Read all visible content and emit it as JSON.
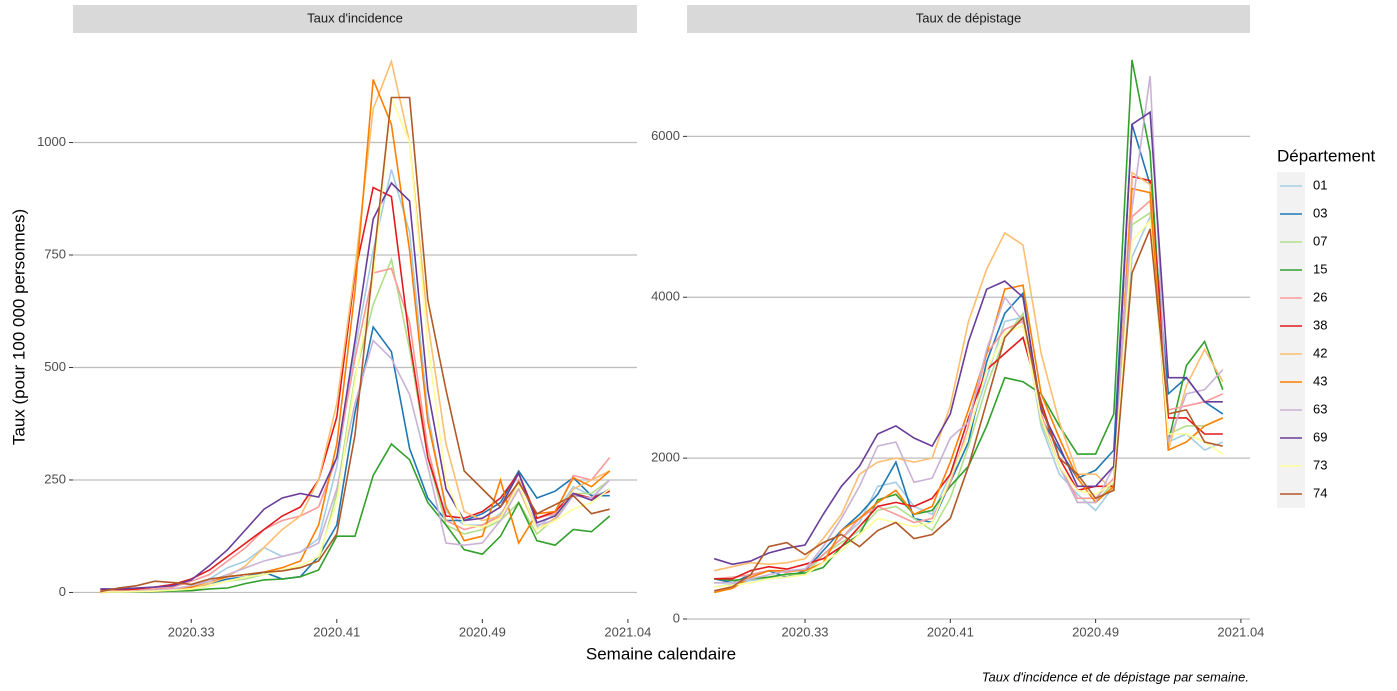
{
  "ylabel": "Taux (pour 100 000 personnes)",
  "xlabel": "Semaine calendaire",
  "legend_title": "Département",
  "caption": "Taux d'incidence et de dépistage par semaine.",
  "chart_data": [
    {
      "type": "line",
      "title": "Taux d'incidence",
      "grid": true,
      "categories": [
        null,
        null,
        null,
        null,
        null,
        "2020.33",
        null,
        null,
        null,
        null,
        null,
        null,
        null,
        "2020.41",
        null,
        null,
        null,
        null,
        null,
        null,
        null,
        "2020.49",
        null,
        null,
        null,
        null,
        null,
        null,
        null,
        "2021.04"
      ],
      "ylim": [
        -59,
        1239
      ],
      "yticks": [
        0,
        250,
        500,
        750,
        1000
      ],
      "series": [
        {
          "name": "01",
          "color": "#a6cee3",
          "values": [
            2,
            2,
            4,
            6,
            8,
            12,
            30,
            55,
            70,
            100,
            80,
            90,
            120,
            280,
            540,
            760,
            940,
            800,
            400,
            180,
            150,
            150,
            175,
            230,
            145,
            175,
            235,
            215,
            225,
            null
          ]
        },
        {
          "name": "03",
          "color": "#1f78b4",
          "values": [
            2,
            2,
            3,
            5,
            6,
            8,
            20,
            30,
            35,
            45,
            30,
            35,
            80,
            150,
            400,
            590,
            535,
            320,
            210,
            160,
            160,
            175,
            200,
            270,
            210,
            225,
            255,
            215,
            215,
            null
          ]
        },
        {
          "name": "07",
          "color": "#b2df8a",
          "values": [
            2,
            2,
            3,
            4,
            5,
            6,
            15,
            25,
            30,
            40,
            50,
            55,
            70,
            220,
            480,
            640,
            740,
            540,
            300,
            150,
            130,
            140,
            160,
            200,
            130,
            165,
            220,
            220,
            250,
            null
          ]
        },
        {
          "name": "15",
          "color": "#33a02c",
          "values": [
            1,
            1,
            1,
            2,
            3,
            4,
            8,
            10,
            20,
            28,
            30,
            35,
            50,
            125,
            125,
            260,
            330,
            295,
            200,
            150,
            95,
            85,
            125,
            200,
            115,
            105,
            140,
            135,
            170,
            null
          ]
        },
        {
          "name": "26",
          "color": "#fb9a99",
          "values": [
            3,
            3,
            5,
            8,
            12,
            25,
            40,
            70,
            100,
            140,
            160,
            170,
            190,
            300,
            520,
            710,
            720,
            600,
            320,
            160,
            140,
            150,
            170,
            250,
            165,
            175,
            260,
            250,
            300,
            null
          ]
        },
        {
          "name": "38",
          "color": "#e31a1c",
          "values": [
            5,
            5,
            8,
            12,
            18,
            30,
            50,
            80,
            110,
            140,
            170,
            190,
            250,
            390,
            710,
            900,
            880,
            560,
            300,
            170,
            165,
            180,
            210,
            265,
            165,
            180,
            220,
            210,
            225,
            null
          ]
        },
        {
          "name": "42",
          "color": "#fdbf6f",
          "values": [
            3,
            3,
            3,
            5,
            8,
            10,
            20,
            35,
            60,
            100,
            140,
            170,
            250,
            420,
            720,
            1075,
            1180,
            1000,
            600,
            330,
            180,
            160,
            170,
            230,
            140,
            165,
            230,
            250,
            270,
            null
          ]
        },
        {
          "name": "43",
          "color": "#ff7f00",
          "values": [
            0,
            2,
            3,
            5,
            8,
            12,
            25,
            35,
            40,
            45,
            55,
            70,
            150,
            330,
            670,
            1140,
            1040,
            760,
            380,
            190,
            115,
            125,
            250,
            110,
            175,
            180,
            255,
            235,
            270,
            null
          ]
        },
        {
          "name": "63",
          "color": "#cab2d6",
          "values": [
            2,
            2,
            3,
            5,
            8,
            15,
            25,
            40,
            55,
            70,
            80,
            90,
            110,
            230,
            420,
            560,
            520,
            440,
            280,
            110,
            105,
            110,
            160,
            230,
            150,
            160,
            215,
            210,
            250,
            null
          ]
        },
        {
          "name": "69",
          "color": "#6a3d9a",
          "values": [
            8,
            8,
            10,
            12,
            15,
            28,
            60,
            95,
            140,
            185,
            210,
            220,
            212,
            300,
            560,
            830,
            910,
            870,
            450,
            230,
            160,
            165,
            190,
            265,
            155,
            170,
            220,
            205,
            230,
            null
          ]
        },
        {
          "name": "73",
          "color": "#ffff99",
          "values": [
            1,
            1,
            2,
            3,
            5,
            8,
            15,
            25,
            35,
            40,
            50,
            60,
            80,
            200,
            470,
            700,
            1100,
            1000,
            550,
            250,
            150,
            145,
            165,
            240,
            140,
            160,
            185,
            200,
            230,
            null
          ]
        },
        {
          "name": "74",
          "color": "#b15928",
          "values": [
            2,
            10,
            15,
            25,
            22,
            18,
            30,
            35,
            40,
            45,
            48,
            55,
            70,
            130,
            350,
            730,
            1100,
            1100,
            650,
            450,
            270,
            230,
            190,
            245,
            175,
            195,
            215,
            175,
            185,
            null
          ]
        }
      ]
    },
    {
      "type": "line",
      "title": "Taux de dépistage",
      "grid": true,
      "categories": [
        null,
        null,
        null,
        null,
        null,
        "2020.33",
        null,
        null,
        null,
        null,
        null,
        null,
        null,
        "2020.41",
        null,
        null,
        null,
        null,
        null,
        null,
        null,
        "2020.49",
        null,
        null,
        null,
        null,
        null,
        null,
        null,
        "2021.04"
      ],
      "ylim": [
        0,
        7260
      ],
      "yticks": [
        0,
        2000,
        4000,
        6000
      ],
      "series": [
        {
          "color": "#a6cee3",
          "values": [
            400,
            430,
            480,
            500,
            520,
            600,
            800,
            1000,
            1200,
            1650,
            1700,
            1400,
            1300,
            1800,
            2300,
            3000,
            3700,
            3750,
            2400,
            1800,
            1550,
            1350,
            1650,
            4500,
            5000,
            2200,
            2300,
            2100,
            2200,
            null
          ]
        },
        {
          "color": "#1f78b4",
          "values": [
            500,
            450,
            550,
            600,
            520,
            600,
            850,
            1100,
            1300,
            1550,
            1950,
            1250,
            1200,
            1700,
            2200,
            3200,
            3800,
            4050,
            2500,
            2100,
            1750,
            1850,
            2100,
            6150,
            5400,
            2800,
            3000,
            2700,
            2550,
            null
          ]
        },
        {
          "color": "#b2df8a",
          "values": [
            450,
            450,
            500,
            520,
            550,
            550,
            800,
            950,
            1100,
            1350,
            1400,
            1250,
            1100,
            1500,
            2150,
            2900,
            3500,
            3800,
            2450,
            1900,
            1450,
            1450,
            1700,
            4900,
            5050,
            2300,
            2400,
            2400,
            2500,
            null
          ]
        },
        {
          "color": "#33a02c",
          "values": [
            500,
            480,
            500,
            520,
            560,
            570,
            640,
            900,
            1050,
            1480,
            1550,
            1300,
            1350,
            1650,
            1900,
            2400,
            3000,
            2950,
            2800,
            2400,
            2050,
            2050,
            2550,
            6950,
            5800,
            2200,
            3150,
            3450,
            2850,
            null
          ]
        },
        {
          "color": "#fb9a99",
          "values": [
            500,
            520,
            550,
            600,
            580,
            620,
            800,
            1000,
            1250,
            1400,
            1300,
            1200,
            1250,
            1700,
            2400,
            3300,
            3600,
            3700,
            2550,
            1900,
            1500,
            1500,
            1750,
            5000,
            5200,
            2600,
            2650,
            2700,
            2800,
            null
          ]
        },
        {
          "color": "#e31a1c",
          "values": [
            500,
            500,
            600,
            650,
            620,
            680,
            750,
            900,
            1150,
            1400,
            1450,
            1400,
            1500,
            1800,
            2500,
            3100,
            3300,
            3500,
            2700,
            2000,
            1600,
            1650,
            1650,
            5500,
            5450,
            2500,
            2500,
            2300,
            2300,
            null
          ]
        },
        {
          "color": "#fdbf6f",
          "values": [
            600,
            650,
            700,
            680,
            700,
            750,
            1000,
            1300,
            1800,
            1950,
            2000,
            1950,
            2000,
            2650,
            3700,
            4350,
            4800,
            4650,
            3300,
            2450,
            1800,
            1800,
            1600,
            5550,
            5400,
            2100,
            2900,
            3350,
            2950,
            null
          ]
        },
        {
          "color": "#ff7f00",
          "values": [
            330,
            380,
            520,
            600,
            600,
            600,
            700,
            1100,
            1250,
            1450,
            1600,
            1300,
            1400,
            1950,
            2600,
            3300,
            4100,
            4150,
            2800,
            2250,
            1750,
            1450,
            1650,
            5350,
            5300,
            2100,
            2200,
            2400,
            2500,
            null
          ]
        },
        {
          "color": "#cab2d6",
          "values": [
            450,
            450,
            500,
            550,
            600,
            620,
            900,
            1250,
            1650,
            2150,
            2200,
            1700,
            1750,
            2250,
            2450,
            3350,
            4000,
            3700,
            2500,
            1900,
            1450,
            1450,
            1900,
            5100,
            6750,
            2200,
            2800,
            2850,
            3100,
            null
          ]
        },
        {
          "color": "#6a3d9a",
          "values": [
            750,
            680,
            720,
            820,
            880,
            920,
            1300,
            1650,
            1900,
            2300,
            2400,
            2250,
            2150,
            2550,
            3450,
            4100,
            4200,
            4000,
            2600,
            2150,
            1650,
            1650,
            1900,
            6150,
            6300,
            3000,
            3000,
            2700,
            2700,
            null
          ]
        },
        {
          "color": "#ffff99",
          "values": [
            400,
            420,
            450,
            500,
            520,
            550,
            700,
            850,
            1050,
            1250,
            1200,
            1150,
            1200,
            1750,
            2300,
            3100,
            3550,
            3650,
            2500,
            1900,
            1600,
            1550,
            1700,
            4700,
            4950,
            2300,
            2300,
            2200,
            2050,
            null
          ]
        },
        {
          "color": "#b15928",
          "values": [
            350,
            400,
            550,
            900,
            950,
            800,
            950,
            1050,
            900,
            1100,
            1200,
            1000,
            1050,
            1250,
            1900,
            2700,
            3500,
            3750,
            2650,
            2000,
            1800,
            1500,
            1600,
            4300,
            4850,
            2550,
            2600,
            2200,
            2150,
            null
          ]
        }
      ]
    }
  ]
}
